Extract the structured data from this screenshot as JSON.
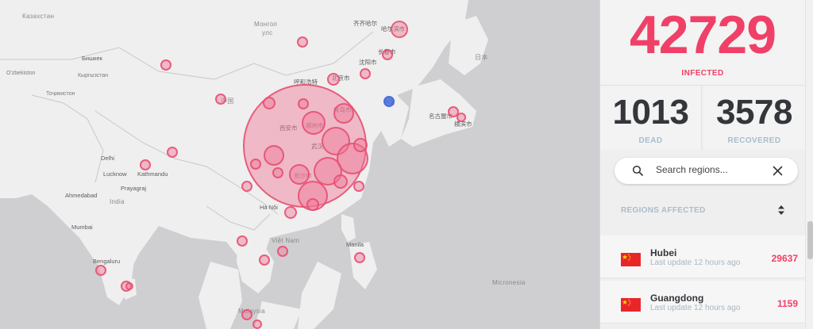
{
  "stats": {
    "infected": "42729",
    "infected_label": "INFECTED",
    "dead": "1013",
    "dead_label": "DEAD",
    "recovered": "3578",
    "recovered_label": "RECOVERED"
  },
  "search": {
    "placeholder": "Search regions...",
    "icon": "search-icon",
    "clear_icon": "close-icon"
  },
  "regions": {
    "title": "REGIONS AFFECTED",
    "sort_icon": "sort-icon",
    "items": [
      {
        "name": "Hubei",
        "update": "Last update 12 hours ago",
        "count": "29637",
        "flag": "china-flag-icon"
      },
      {
        "name": "Guangdong",
        "update": "Last update 12 hours ago",
        "count": "1159",
        "flag": "china-flag-icon"
      }
    ]
  },
  "map": {
    "labels": {
      "kazakhstan": "Казахстан",
      "mongolia": "Монгол",
      "mongolia2": "улс",
      "bishkek": "Бишкек",
      "kyrgyzstan": "Кыргызстан",
      "uzbekistan": "O'zbekiston",
      "tajikistan": "Тоҷикистон",
      "china": "中国",
      "delhi": "Delhi",
      "lucknow": "Lucknow",
      "kathmandu": "Kathmandu",
      "prayagraj": "Prayagraj",
      "ahmedabad": "Ahmedabad",
      "india": "India",
      "mumbai": "Mumbai",
      "bengaluru": "Bengaluru",
      "hanoi": "Hà Nội",
      "viet_nam": "Việt Nam",
      "manila": "Manila",
      "malaysia": "Malaysia",
      "micronesia": "Micronesia",
      "japan": "日本",
      "wuhan": "武汉",
      "xian": "西安市",
      "zhengzhou": "郑州市",
      "hohhot": "呼和浩特",
      "qingdao": "青岛市",
      "changsha": "长沙市",
      "beijing": "北京市",
      "harbin": "哈尔滨市",
      "changchun": "长春市",
      "shenyang": "沈阳市",
      "seoul": "서울",
      "nagoya": "名古屋市",
      "yokohama": "横滨市",
      "qiqihar": "齐齐哈尔"
    },
    "accent_pink": "#f04067",
    "bubble_fill": "#f078a0",
    "marker_blue": "#466edc"
  }
}
